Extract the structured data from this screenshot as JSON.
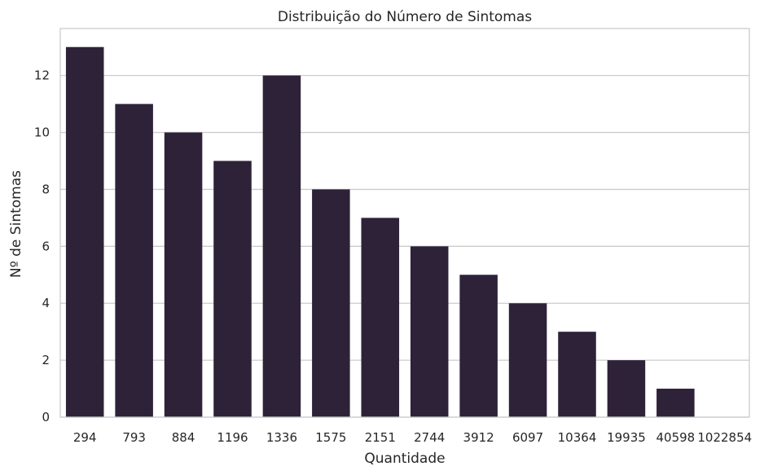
{
  "chart_data": {
    "type": "bar",
    "title": "Distribuição do Número de Sintomas",
    "xlabel": "Quantidade",
    "ylabel": "Nº de Sintomas",
    "categories": [
      "294",
      "793",
      "884",
      "1196",
      "1336",
      "1575",
      "2151",
      "2744",
      "3912",
      "6097",
      "10364",
      "19935",
      "40598",
      "1022854"
    ],
    "values": [
      13,
      11,
      10,
      9,
      12,
      8,
      7,
      6,
      5,
      4,
      3,
      2,
      1,
      0
    ],
    "ylim": [
      0,
      13.65
    ],
    "yticks": [
      0,
      2,
      4,
      6,
      8,
      10,
      12
    ],
    "grid": "horizontal",
    "bar_color": "#2e2239",
    "grid_color": "#cccccc"
  }
}
